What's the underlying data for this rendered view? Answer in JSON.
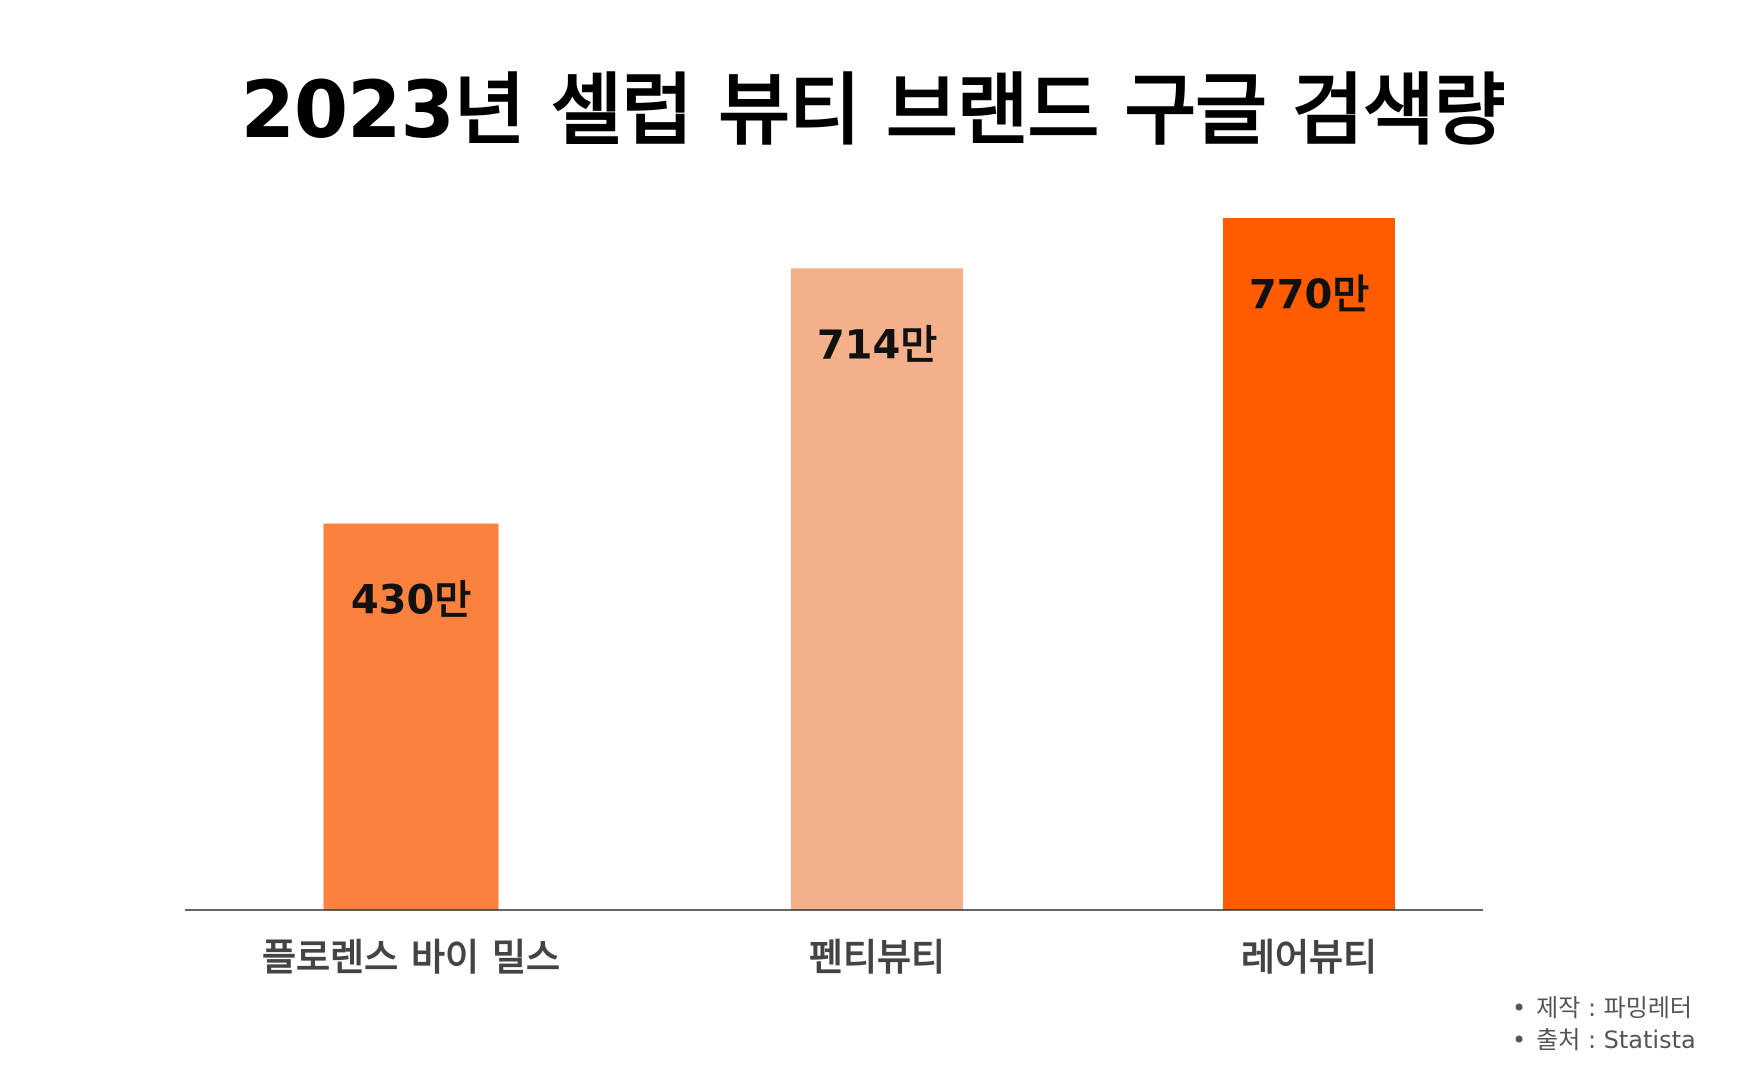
{
  "chart_data": {
    "type": "bar",
    "title": "2023년 셀럽 뷰티 브랜드 구글 검색량",
    "categories": [
      "플로렌스 바이 밀스",
      "펜티뷰티",
      "레어뷰티"
    ],
    "values": [
      430,
      714,
      770
    ],
    "value_labels": [
      "430만",
      "714만",
      "770만"
    ],
    "colors": [
      "#FB813F",
      "#F4AF8B",
      "#FF5C00"
    ],
    "xlabel": "",
    "ylabel": "",
    "ylim": [
      0,
      770
    ],
    "grid": false
  },
  "footnotes": {
    "maker": "제작 : 파밍레터",
    "source": "출처 : Statista"
  },
  "colors": {
    "axis": "#333333",
    "value_label": "#111111",
    "category_label": "#444444"
  }
}
